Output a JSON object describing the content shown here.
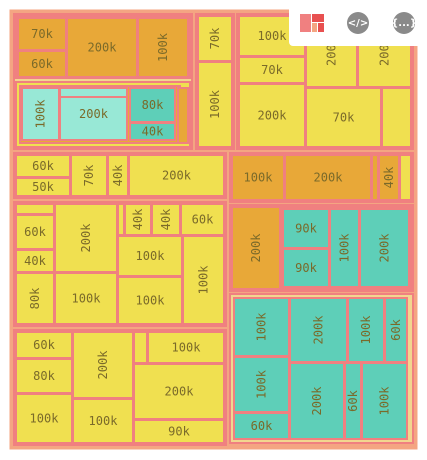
{
  "colors": {
    "background": "#ffffff",
    "frame": "#f4a582",
    "cell_border": "#f08080",
    "level_fill_outer": "#f2d68f",
    "green_group_fill": "#e8b04a",
    "yellow": "#f0e050",
    "orange": "#e8a838",
    "teal": "#5ecfb8",
    "light_teal": "#98e8d6",
    "label": "#7a6a2a"
  },
  "toolbar": {
    "items": [
      {
        "name": "treemap-chart-icon",
        "label": ""
      },
      {
        "name": "code-icon",
        "label": "</>"
      },
      {
        "name": "json-icon",
        "label": "{...}"
      }
    ]
  },
  "chart_data": {
    "type": "treemap",
    "title": "",
    "children": [
      {
        "children": [
          {
            "children": [
              {
                "children": [
                  {
                    "label": "70k",
                    "value": 70000
                  },
                  {
                    "label": "60k",
                    "value": 60000
                  }
                ]
              },
              {
                "label": "200k",
                "value": 200000
              },
              {
                "label": "100k",
                "value": 100000
              }
            ]
          },
          {
            "children": [
              {
                "children": [
                  {
                    "label": "100k",
                    "value": 100000
                  },
                  {
                    "label": "200k",
                    "value": 200000
                  },
                  {
                    "label": "",
                    "value": 20000
                  }
                ]
              },
              {
                "children": [
                  {
                    "label": "80k",
                    "value": 80000
                  },
                  {
                    "label": "40k",
                    "value": 40000
                  }
                ]
              },
              {
                "label": "",
                "value": 20000
              }
            ]
          }
        ]
      },
      {
        "children": [
          {
            "label": "70k",
            "value": 70000
          },
          {
            "label": "100k",
            "value": 100000
          }
        ]
      },
      {
        "children": [
          {
            "label": "100k",
            "value": 100000
          },
          {
            "label": "70k",
            "value": 70000
          },
          {
            "label": "200k",
            "value": 200000
          },
          {
            "label": "200k",
            "value": 200000
          },
          {
            "label": "200k",
            "value": 200000
          },
          {
            "label": "70k",
            "value": 70000
          }
        ]
      },
      {
        "children": [
          {
            "label": "60k",
            "value": 60000
          },
          {
            "label": "50k",
            "value": 50000
          },
          {
            "label": "70k",
            "value": 70000
          },
          {
            "label": "40k",
            "value": 40000
          },
          {
            "label": "200k",
            "value": 200000
          }
        ]
      },
      {
        "children": [
          {
            "label": "100k",
            "value": 100000
          },
          {
            "label": "200k",
            "value": 200000
          },
          {
            "label": "",
            "value": 10000
          },
          {
            "label": "40k",
            "value": 40000
          }
        ]
      },
      {
        "children": [
          {
            "label": "",
            "value": 20000
          },
          {
            "label": "60k",
            "value": 60000
          },
          {
            "label": "40k",
            "value": 40000
          },
          {
            "label": "80k",
            "value": 80000
          },
          {
            "label": "200k",
            "value": 200000
          },
          {
            "label": "100k",
            "value": 100000
          },
          {
            "label": "40k",
            "value": 40000
          },
          {
            "label": "40k",
            "value": 40000
          },
          {
            "label": "60k",
            "value": 60000
          },
          {
            "label": "100k",
            "value": 100000
          },
          {
            "label": "100k",
            "value": 100000
          },
          {
            "label": "100k",
            "value": 100000
          }
        ]
      },
      {
        "children": [
          {
            "label": "200k",
            "value": 200000
          },
          {
            "children": [
              {
                "label": "90k",
                "value": 90000
              },
              {
                "label": "90k",
                "value": 90000
              },
              {
                "label": "100k",
                "value": 100000
              },
              {
                "label": "200k",
                "value": 200000
              }
            ]
          }
        ]
      },
      {
        "children": [
          {
            "label": "100k",
            "value": 100000
          },
          {
            "label": "200k",
            "value": 200000
          },
          {
            "label": "100k",
            "value": 100000
          },
          {
            "label": "60k",
            "value": 60000
          },
          {
            "label": "100k",
            "value": 100000
          },
          {
            "label": "200k",
            "value": 200000
          },
          {
            "label": "60k",
            "value": 60000
          },
          {
            "label": "100k",
            "value": 100000
          },
          {
            "label": "60k",
            "value": 60000
          }
        ]
      },
      {
        "children": [
          {
            "label": "60k",
            "value": 60000
          },
          {
            "label": "80k",
            "value": 80000
          },
          {
            "label": "100k",
            "value": 100000
          },
          {
            "label": "200k",
            "value": 200000
          },
          {
            "label": "100k",
            "value": 100000
          },
          {
            "label": "",
            "value": 10000
          },
          {
            "label": "100k",
            "value": 100000
          },
          {
            "label": "200k",
            "value": 200000
          },
          {
            "label": "90k",
            "value": 90000
          }
        ]
      }
    ]
  }
}
